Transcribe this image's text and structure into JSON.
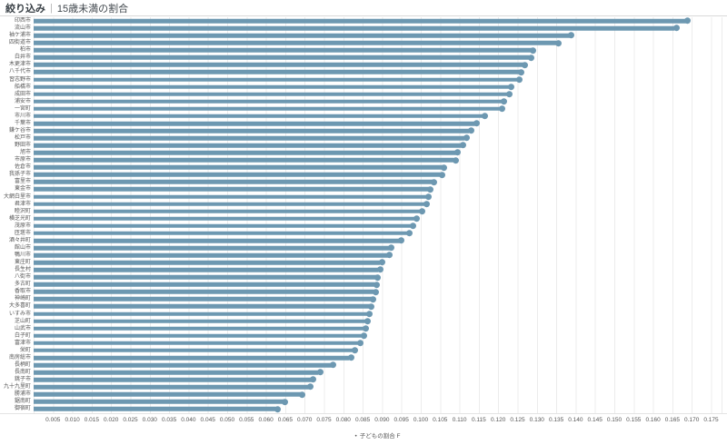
{
  "title": {
    "prefix": "絞り込み",
    "separator": "|",
    "text": "15歳未満の割合"
  },
  "legend": {
    "marker": "•",
    "label": "子どもの割合 F"
  },
  "colors": {
    "bar": "#6d98b1",
    "grid": "#ececec",
    "label": "#575757",
    "title": "#383f45"
  },
  "chart_data": {
    "type": "bar",
    "orientation": "horizontal",
    "title": "15歳未満の割合",
    "xlabel": "子どもの割合 F",
    "ylabel": "",
    "xlim": [
      0,
      0.1775
    ],
    "grid": true,
    "legend_position": "bottom",
    "ticks": [
      0.005,
      0.01,
      0.015,
      0.02,
      0.025,
      0.03,
      0.035,
      0.04,
      0.045,
      0.05,
      0.055,
      0.06,
      0.065,
      0.07,
      0.075,
      0.08,
      0.085,
      0.09,
      0.095,
      0.1,
      0.105,
      0.11,
      0.115,
      0.12,
      0.125,
      0.13,
      0.135,
      0.14,
      0.145,
      0.15,
      0.155,
      0.16,
      0.165,
      0.17,
      0.175
    ],
    "categories": [
      "印西市",
      "流山市",
      "袖ケ浦市",
      "四街道市",
      "柏市",
      "白井市",
      "木更津市",
      "八千代市",
      "習志野市",
      "船橋市",
      "成田市",
      "浦安市",
      "一宮町",
      "市川市",
      "千葉市",
      "鎌ケ谷市",
      "松戸市",
      "野田市",
      "旭市",
      "市原市",
      "佐倉市",
      "我孫子市",
      "富里市",
      "東金市",
      "大網白里市",
      "君津市",
      "睦沢町",
      "横芝光町",
      "茂原市",
      "匝瑳市",
      "酒々井町",
      "館山市",
      "鴨川市",
      "東庄町",
      "長生村",
      "八街市",
      "多古町",
      "香取市",
      "神崎町",
      "大多喜町",
      "いすみ市",
      "芝山町",
      "山武市",
      "白子町",
      "富津市",
      "栄町",
      "南房総市",
      "長柄町",
      "長南町",
      "銚子市",
      "九十九里町",
      "勝浦市",
      "鋸南町",
      "御宿町"
    ],
    "values": [
      0.169,
      0.166,
      0.139,
      0.1355,
      0.129,
      0.1285,
      0.127,
      0.126,
      0.1255,
      0.1235,
      0.123,
      0.1215,
      0.121,
      0.1165,
      0.1145,
      0.113,
      0.1118,
      0.111,
      0.1095,
      0.109,
      0.106,
      0.1055,
      0.1035,
      0.1025,
      0.102,
      0.1015,
      0.1005,
      0.099,
      0.098,
      0.097,
      0.095,
      0.0925,
      0.092,
      0.09,
      0.0895,
      0.089,
      0.0886,
      0.0883,
      0.0877,
      0.0873,
      0.0868,
      0.0864,
      0.0858,
      0.0853,
      0.0845,
      0.083,
      0.082,
      0.0775,
      0.074,
      0.0723,
      0.0715,
      0.0695,
      0.065,
      0.063
    ]
  }
}
